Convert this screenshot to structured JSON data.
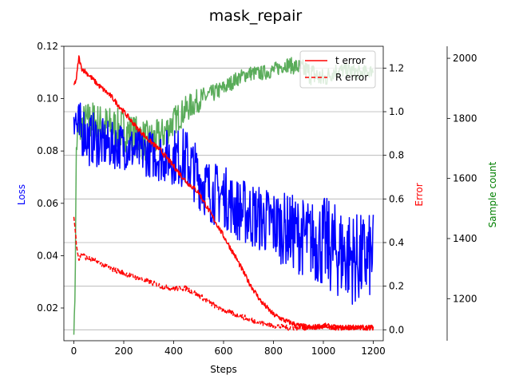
{
  "chart_data": {
    "type": "line",
    "title": "mask_repair",
    "xlabel": "Steps",
    "xlim": [
      -40,
      1240
    ],
    "xticks": [
      0,
      200,
      400,
      600,
      800,
      1000,
      1200
    ],
    "axes": {
      "loss": {
        "label": "Loss",
        "color": "#0000ff",
        "ylim": [
          0.0075,
          0.12
        ],
        "ticks": [
          0.02,
          0.04,
          0.06,
          0.08,
          0.1,
          0.12
        ],
        "tick_labels": [
          "0.02",
          "0.04",
          "0.06",
          "0.08",
          "0.10",
          "0.12"
        ]
      },
      "error": {
        "label": "Error",
        "color": "#ff0000",
        "ylim": [
          -0.05,
          1.3
        ],
        "ticks": [
          0.0,
          0.2,
          0.4,
          0.6,
          0.8,
          1.0,
          1.2
        ],
        "tick_labels": [
          "0.0",
          "0.2",
          "0.4",
          "0.6",
          "0.8",
          "1.0",
          "1.2"
        ]
      },
      "samples": {
        "label": "Sample count",
        "color": "#008000",
        "ylim": [
          1060,
          2040
        ],
        "ticks": [
          1200,
          1400,
          1600,
          1800,
          2000
        ],
        "tick_labels": [
          "1200",
          "1400",
          "1600",
          "1800",
          "2000"
        ]
      }
    },
    "grid": "horizontal lines at error-axis ticks",
    "legend": {
      "placement": "top-right",
      "entries": [
        "t error",
        "R error"
      ]
    },
    "series": [
      {
        "name": "Loss",
        "axis": "loss",
        "color": "#0000ff",
        "style": "solid",
        "x": [
          0,
          10,
          20,
          40,
          60,
          80,
          100,
          150,
          200,
          250,
          300,
          350,
          400,
          450,
          500,
          550,
          600,
          650,
          700,
          750,
          800,
          850,
          900,
          950,
          1000,
          1050,
          1100,
          1150,
          1200
        ],
        "y": [
          0.098,
          0.09,
          0.087,
          0.088,
          0.084,
          0.085,
          0.083,
          0.082,
          0.082,
          0.08,
          0.079,
          0.078,
          0.078,
          0.077,
          0.07,
          0.064,
          0.063,
          0.058,
          0.056,
          0.054,
          0.052,
          0.05,
          0.048,
          0.046,
          0.045,
          0.042,
          0.04,
          0.038,
          0.04
        ],
        "band": [
          0.012,
          0.01,
          0.012,
          0.01,
          0.01,
          0.01,
          0.01,
          0.009,
          0.009,
          0.009,
          0.009,
          0.01,
          0.011,
          0.012,
          0.012,
          0.012,
          0.012,
          0.012,
          0.013,
          0.013,
          0.014,
          0.014,
          0.015,
          0.015,
          0.018,
          0.018,
          0.018,
          0.018,
          0.016
        ]
      },
      {
        "name": "t error",
        "axis": "error",
        "color": "#ff0000",
        "style": "solid",
        "x": [
          0,
          10,
          20,
          30,
          50,
          100,
          150,
          200,
          250,
          300,
          350,
          400,
          450,
          500,
          550,
          600,
          650,
          700,
          750,
          800,
          850,
          900,
          950,
          1000,
          1050,
          1100,
          1150,
          1200
        ],
        "y": [
          1.12,
          1.15,
          1.25,
          1.2,
          1.18,
          1.12,
          1.07,
          1.0,
          0.93,
          0.87,
          0.82,
          0.75,
          0.68,
          0.63,
          0.53,
          0.43,
          0.33,
          0.22,
          0.13,
          0.07,
          0.04,
          0.02,
          0.01,
          0.02,
          0.01,
          0.01,
          0.01,
          0.01
        ],
        "jitter": 0.012
      },
      {
        "name": "R error",
        "axis": "error",
        "color": "#ff0000",
        "style": "dashed",
        "x": [
          0,
          10,
          20,
          30,
          50,
          100,
          150,
          200,
          250,
          300,
          350,
          400,
          450,
          500,
          550,
          600,
          650,
          700,
          750,
          800,
          850,
          900,
          950,
          1000,
          1050,
          1100,
          1150,
          1200
        ],
        "y": [
          0.52,
          0.4,
          0.32,
          0.35,
          0.33,
          0.31,
          0.28,
          0.26,
          0.24,
          0.22,
          0.2,
          0.19,
          0.19,
          0.16,
          0.12,
          0.09,
          0.07,
          0.05,
          0.03,
          0.02,
          0.01,
          0.01,
          0.01,
          0.01,
          0.01,
          0.01,
          0.01,
          0.01
        ],
        "jitter": 0.012
      },
      {
        "name": "Sample count",
        "axis": "samples",
        "color": "#5aac5a",
        "style": "solid",
        "x": [
          0,
          5,
          10,
          20,
          40,
          60,
          80,
          100,
          150,
          200,
          250,
          300,
          350,
          400,
          450,
          500,
          550,
          600,
          650,
          700,
          750,
          800,
          850,
          900,
          950,
          1000,
          1050,
          1100,
          1150,
          1200
        ],
        "y": [
          1080,
          1230,
          1700,
          1760,
          1780,
          1790,
          1790,
          1780,
          1770,
          1760,
          1740,
          1720,
          1740,
          1790,
          1830,
          1860,
          1880,
          1900,
          1930,
          1950,
          1950,
          1960,
          1980,
          1970,
          1950,
          1930,
          1960,
          1960,
          1950,
          1960
        ],
        "band": [
          0,
          20,
          40,
          70,
          70,
          70,
          70,
          70,
          70,
          70,
          70,
          70,
          60,
          50,
          45,
          40,
          30,
          28,
          25,
          25,
          25,
          25,
          25,
          30,
          40,
          35,
          25,
          25,
          25,
          20
        ]
      }
    ]
  }
}
